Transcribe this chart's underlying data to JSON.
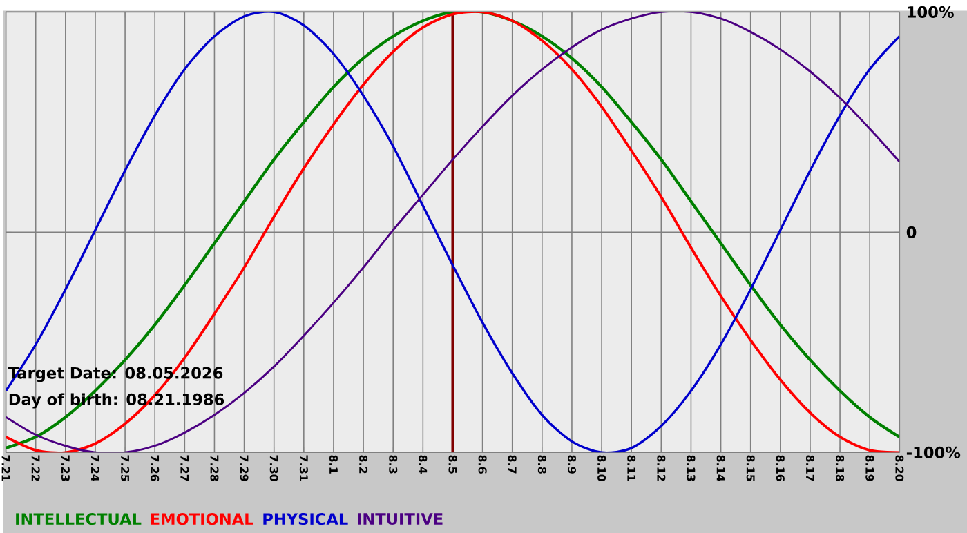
{
  "chart_data": {
    "type": "line",
    "categories": [
      "7.21",
      "7.22",
      "7.23",
      "7.24",
      "7.25",
      "7.26",
      "7.27",
      "7.28",
      "7.29",
      "7.30",
      "7.31",
      "8.1",
      "8.2",
      "8.3",
      "8.4",
      "8.5",
      "8.6",
      "8.7",
      "8.8",
      "8.9",
      "8.10",
      "8.11",
      "8.12",
      "8.13",
      "8.14",
      "8.15",
      "8.16",
      "8.17",
      "8.18",
      "8.19",
      "8.20"
    ],
    "series": [
      {
        "name": "INTELLECTUAL",
        "color": "#008000",
        "values": [
          -98,
          -93,
          -84,
          -72,
          -58,
          -42,
          -24,
          -5,
          14,
          33,
          50,
          66,
          79,
          89,
          96,
          100,
          100,
          96,
          89,
          79,
          66,
          50,
          33,
          14,
          -5,
          -24,
          -42,
          -58,
          -72,
          -84,
          -93
        ]
      },
      {
        "name": "EMOTIONAL",
        "color": "#ff0000",
        "values": [
          -93,
          -99,
          -100,
          -96,
          -87,
          -74,
          -57,
          -37,
          -16,
          7,
          29,
          49,
          67,
          82,
          93,
          99,
          100,
          96,
          87,
          74,
          57,
          37,
          16,
          -7,
          -29,
          -49,
          -67,
          -82,
          -93,
          -99,
          -100
        ]
      },
      {
        "name": "PHYSICAL",
        "color": "#0000cc",
        "values": [
          -72,
          -51,
          -26,
          1,
          28,
          53,
          74,
          89,
          98,
          100,
          94,
          81,
          62,
          39,
          12,
          -15,
          -41,
          -64,
          -83,
          -95,
          -100,
          -98,
          -88,
          -72,
          -51,
          -26,
          1,
          28,
          53,
          74,
          89
        ]
      },
      {
        "name": "INTUITIVE",
        "color": "#4b0082",
        "values": [
          -84,
          -92,
          -97,
          -100,
          -100,
          -97,
          -91,
          -83,
          -73,
          -61,
          -47,
          -32,
          -16,
          1,
          17,
          33,
          48,
          62,
          74,
          84,
          92,
          97,
          100,
          100,
          97,
          91,
          83,
          73,
          61,
          47,
          32
        ]
      }
    ],
    "ylim": [
      -100,
      100
    ],
    "yticks": [
      {
        "value": -100,
        "label": "-100%"
      },
      0,
      {
        "value": 100,
        "label": "100%"
      }
    ],
    "grid": true,
    "legend": "bottom",
    "ref_lines": [
      {
        "axis": "x",
        "value": "8.5",
        "color": "#800000"
      }
    ],
    "annotations": [
      "Target Date: 08.05.2026",
      "Day of birth: 08.21.1986"
    ]
  }
}
